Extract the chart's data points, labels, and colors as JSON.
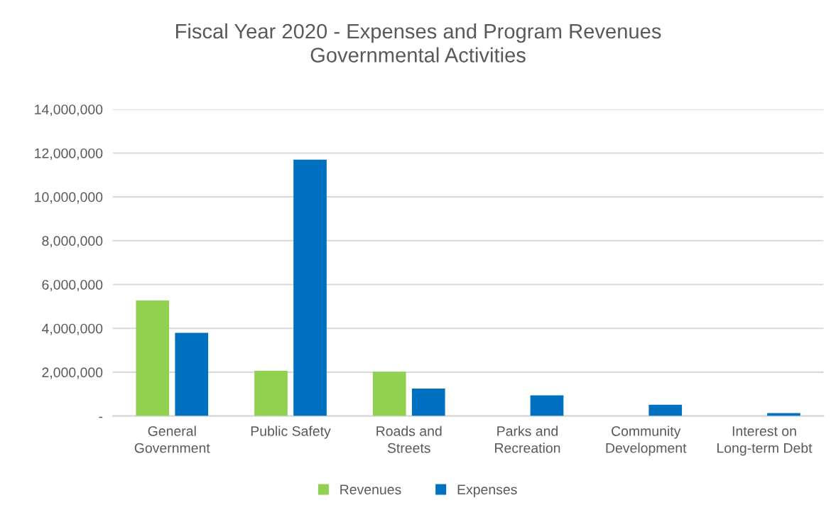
{
  "chart_data": {
    "type": "bar",
    "title": "Fiscal Year 2020 - Expenses and Program Revenues\nGovernmental Activities",
    "categories": [
      "General\nGovernment",
      "Public Safety",
      "Roads and\nStreets",
      "Parks and\nRecreation",
      "Community\nDevelopment",
      "Interest on\nLong-term Debt"
    ],
    "series": [
      {
        "name": "Revenues",
        "color": "#92d050",
        "values": [
          5270000,
          2060000,
          2020000,
          0,
          0,
          0
        ]
      },
      {
        "name": "Expenses",
        "color": "#0070c0",
        "values": [
          3800000,
          11700000,
          1250000,
          940000,
          510000,
          130000
        ]
      }
    ],
    "ylim": [
      0,
      14000000
    ],
    "yticks": [
      {
        "value": 0,
        "label": "-"
      },
      {
        "value": 2000000,
        "label": "2,000,000"
      },
      {
        "value": 4000000,
        "label": "4,000,000"
      },
      {
        "value": 6000000,
        "label": "6,000,000"
      },
      {
        "value": 8000000,
        "label": "8,000,000"
      },
      {
        "value": 10000000,
        "label": "10,000,000"
      },
      {
        "value": 12000000,
        "label": "12,000,000"
      },
      {
        "value": 14000000,
        "label": "14,000,000"
      }
    ],
    "grid": "y",
    "legend": "bottom"
  }
}
